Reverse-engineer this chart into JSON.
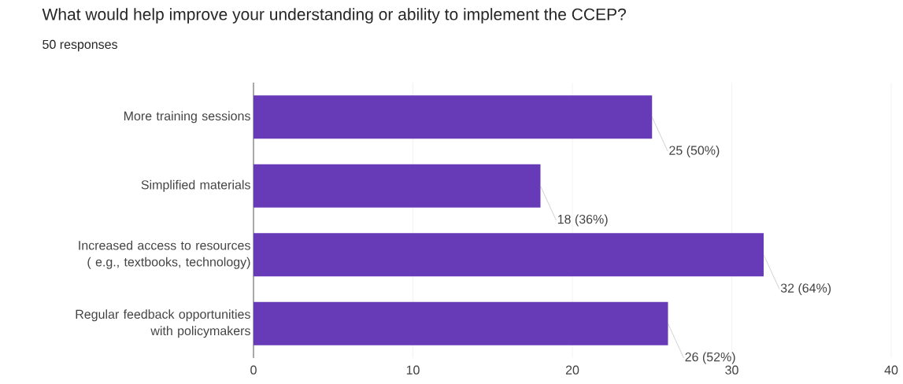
{
  "chart_data": {
    "type": "bar",
    "orientation": "horizontal",
    "title": "What would help improve your understanding or ability to implement the CCEP?",
    "subtitle": "50 responses",
    "categories": [
      "More training sessions",
      "Simplified materials",
      "Increased access to resources ( e.g., textbooks, technology)",
      "Regular feedback opportunities with policymakers"
    ],
    "values": [
      25,
      18,
      32,
      26
    ],
    "value_labels": [
      "25 (50%)",
      "18 (36%)",
      "32 (64%)",
      "26 (52%)"
    ],
    "color": "#673ab7",
    "xlim": [
      0,
      40
    ],
    "xticks": [
      0,
      10,
      20,
      30,
      40
    ],
    "grid": "x"
  }
}
